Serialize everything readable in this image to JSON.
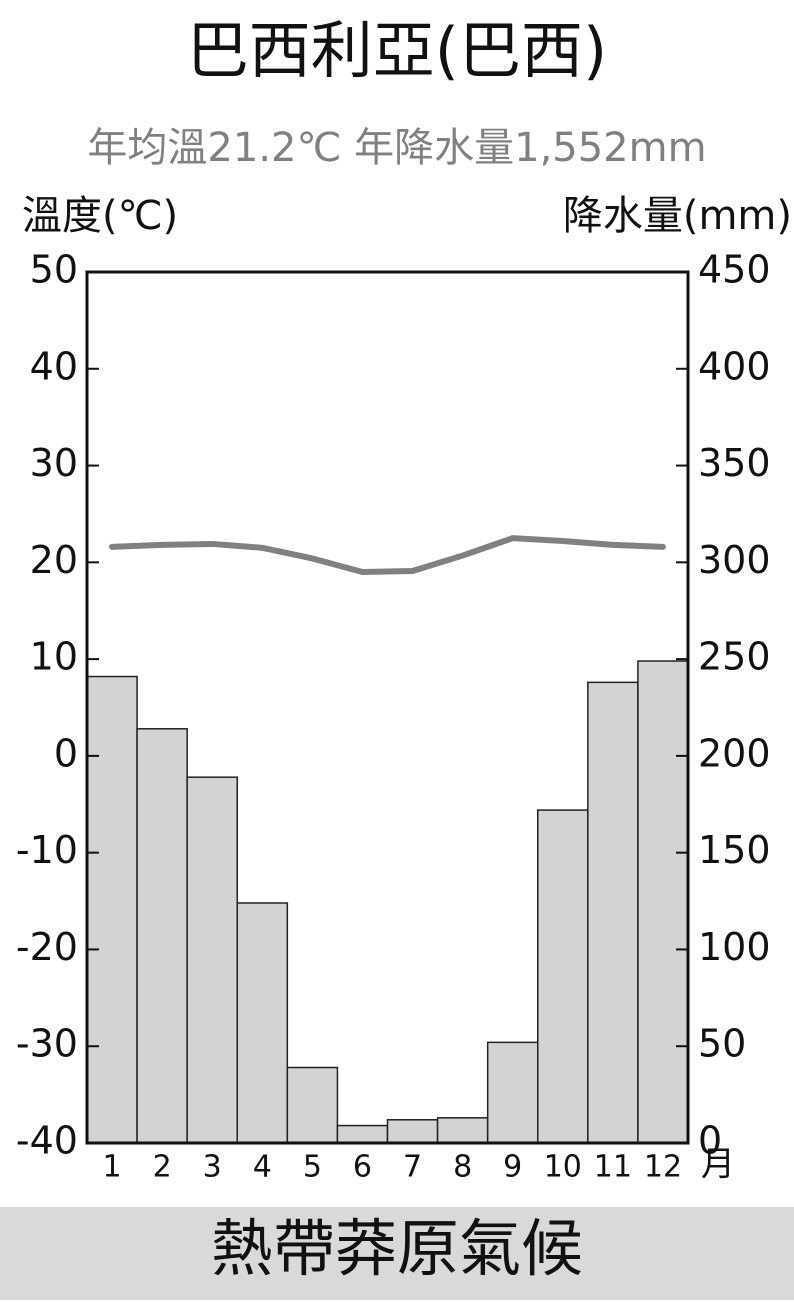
{
  "chart_data": {
    "type": "bar_line",
    "title": "巴西利亞(巴西)",
    "subtitle": "年均溫21.2℃ 年降水量1,552mm",
    "ylabel": "溫度(℃)",
    "y2label": "降水量(mm)",
    "x_unit": "月",
    "caption": "熱帶莽原氣候",
    "categories": [
      "1",
      "2",
      "3",
      "4",
      "5",
      "6",
      "7",
      "8",
      "9",
      "10",
      "11",
      "12"
    ],
    "series": [
      {
        "name": "降水量",
        "type": "bar",
        "axis": "y2",
        "color": "#d3d3d3",
        "values": [
          241,
          214,
          189,
          124,
          39,
          9,
          12,
          13,
          52,
          172,
          238,
          249
        ]
      },
      {
        "name": "溫度",
        "type": "line",
        "axis": "y",
        "color": "#808080",
        "values": [
          21.6,
          21.8,
          21.9,
          21.5,
          20.4,
          19.0,
          19.1,
          20.7,
          22.5,
          22.2,
          21.8,
          21.6
        ]
      }
    ],
    "ylim": [
      -40,
      50
    ],
    "yticks": [
      -40,
      -30,
      -20,
      -10,
      0,
      10,
      20,
      30,
      40,
      50
    ],
    "y2lim": [
      0,
      450
    ],
    "y2ticks": [
      0,
      50,
      100,
      150,
      200,
      250,
      300,
      350,
      400,
      450
    ]
  }
}
